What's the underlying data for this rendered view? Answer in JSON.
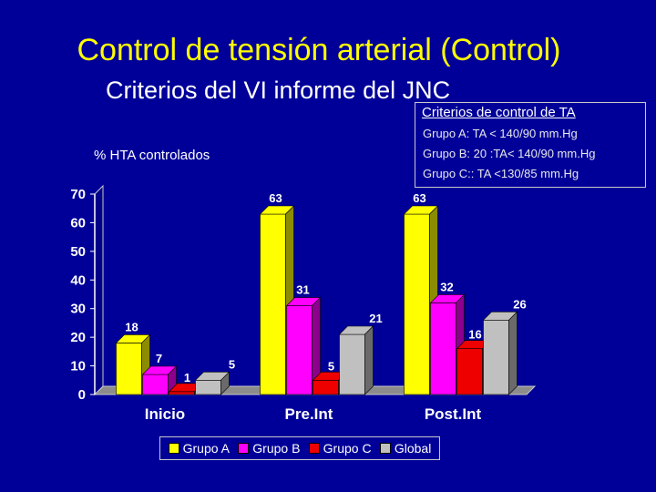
{
  "slide": {
    "title": "Control de tensión arterial (Control)",
    "subtitle": "Criterios del VI informe del JNC"
  },
  "criteria_box": {
    "title": "Criterios de control de TA",
    "lines": [
      "Grupo A: TA < 140/90 mm.Hg",
      "Grupo B: 20 :TA< 140/90 mm.Hg",
      "Grupo C:: TA <130/85 mm.Hg"
    ]
  },
  "chart_data": {
    "type": "bar",
    "ylabel": "% HTA controlados",
    "ylim": [
      0,
      70
    ],
    "yticks": [
      0,
      10,
      20,
      30,
      40,
      50,
      60,
      70
    ],
    "categories": [
      "Inicio",
      "Pre.Int",
      "Post.Int"
    ],
    "series": [
      {
        "name": "Grupo A",
        "color": "#ffff00",
        "values": [
          18,
          63,
          63
        ]
      },
      {
        "name": "Grupo B",
        "color": "#ff00ff",
        "values": [
          7,
          31,
          32
        ]
      },
      {
        "name": "Grupo C",
        "color": "#ee0000",
        "values": [
          1,
          5,
          16
        ]
      },
      {
        "name": "Global",
        "color": "#c0c0c0",
        "values": [
          5,
          21,
          26
        ]
      }
    ],
    "legend_position": "bottom",
    "grid": false,
    "three_d": true
  }
}
